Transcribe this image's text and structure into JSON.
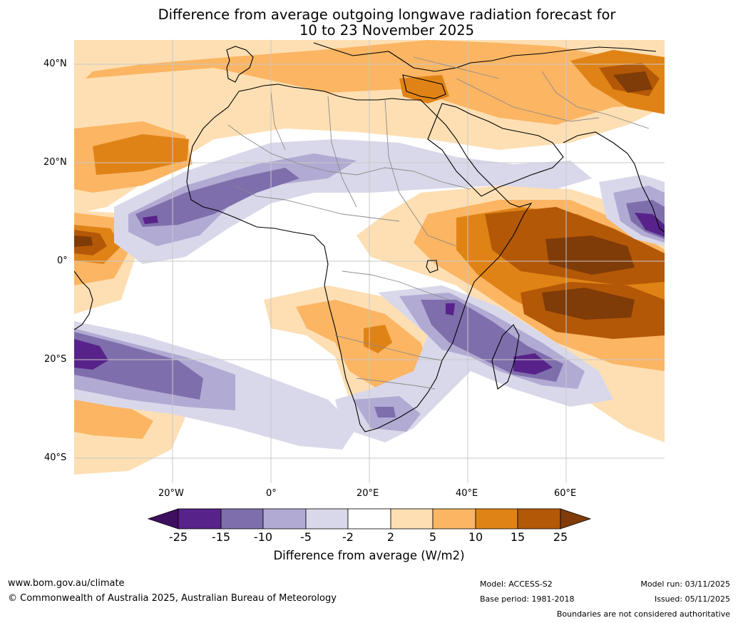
{
  "title_line1": "Difference from average outgoing longwave radiation forecast for",
  "title_line2": "10 to 23 November 2025",
  "lat_labels": [
    "40°N",
    "20°N",
    "0°",
    "20°S",
    "40°S"
  ],
  "lon_labels": [
    "20°W",
    "0°",
    "20°E",
    "40°E",
    "60°E"
  ],
  "colorbar": {
    "title": "Difference from average (W/m2)",
    "ticks": [
      "-25",
      "-15",
      "-10",
      "-5",
      "-2",
      "2",
      "5",
      "10",
      "15",
      "25"
    ],
    "colors": [
      "#3f0f5f",
      "#57238a",
      "#7f6eac",
      "#b1aad3",
      "#d9d8ea",
      "#ffffff",
      "#fddfb3",
      "#fbb563",
      "#e08316",
      "#b35807",
      "#7f3b08"
    ]
  },
  "footer": {
    "website": "www.bom.gov.au/climate",
    "copyright": "© Commonwealth of Australia 2025, Australian Bureau of Meteorology",
    "model": "Model: ACCESS-S2",
    "base_period": "Base period: 1981-2018",
    "model_run": "Model run: 03/11/2025",
    "issued": "Issued: 05/11/2025",
    "disclaimer": "Boundaries are not considered authoritative"
  }
}
